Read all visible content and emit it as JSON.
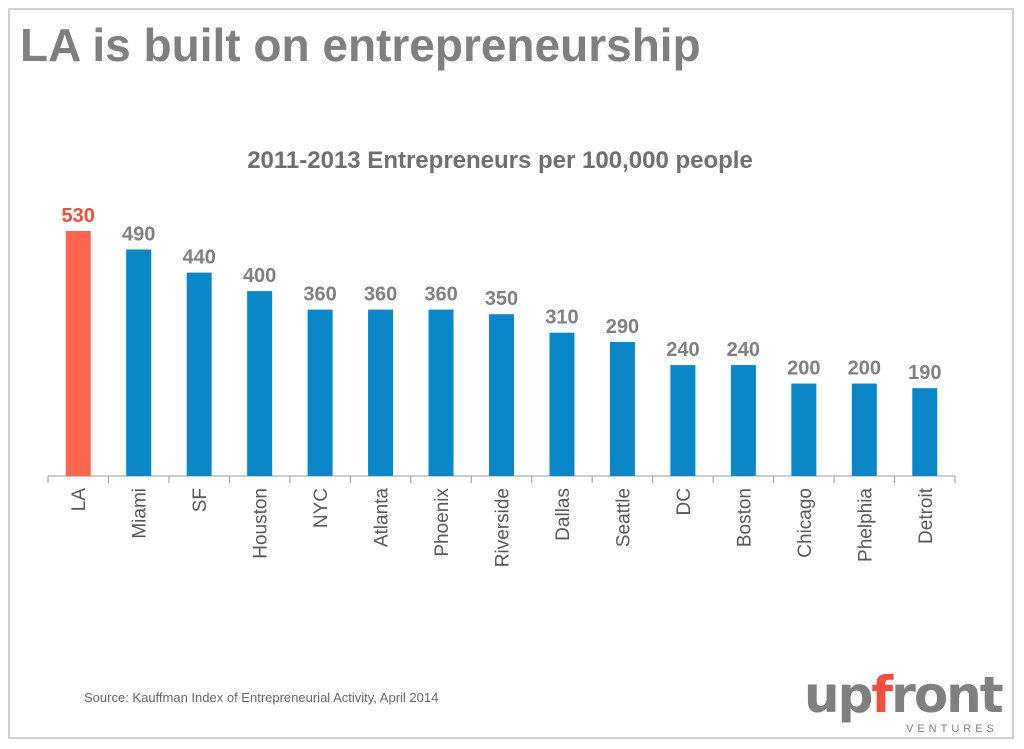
{
  "slide": {
    "title": "LA is built on entrepreneurship",
    "source": "Source: Kauffman Index of Entrepreneurial Activity, April 2014",
    "logo": {
      "text": "upfront",
      "subtext": "VENTURES",
      "color": "#808080",
      "accent": "#f04e3e"
    }
  },
  "chart_data": {
    "type": "bar",
    "title": "2011-2013 Entrepreneurs per 100,000 people",
    "xlabel": "",
    "ylabel": "",
    "categories": [
      "LA",
      "Miami",
      "SF",
      "Houston",
      "NYC",
      "Atlanta",
      "Phoenix",
      "Riverside",
      "Dallas",
      "Seattle",
      "DC",
      "Boston",
      "Chicago",
      "Phelphia",
      "Detroit"
    ],
    "values": [
      530,
      490,
      440,
      400,
      360,
      360,
      360,
      350,
      310,
      290,
      240,
      240,
      200,
      200,
      190
    ],
    "ylim": [
      0,
      600
    ],
    "grid": false,
    "data_labels": true,
    "colors": {
      "highlight": "#ff6650",
      "default": "#0a87c8",
      "highlight_label": "#f04e3e",
      "label": "#808080"
    },
    "highlight_index": 0
  }
}
